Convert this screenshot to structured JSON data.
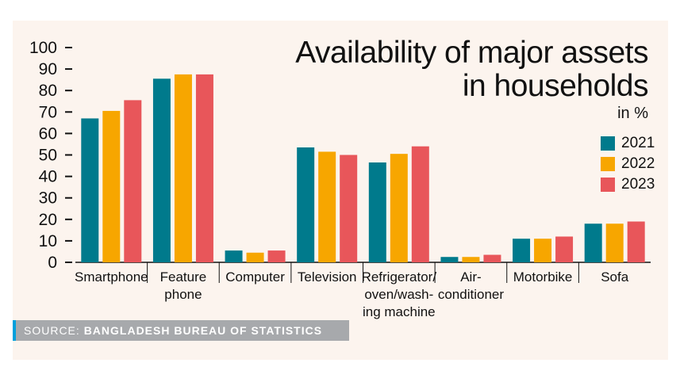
{
  "chart_data": {
    "type": "bar",
    "title": "Availability of major assets in households",
    "title_lines": [
      "Availability of major assets",
      "in households"
    ],
    "unit": "in %",
    "categories": [
      [
        "Smartphone"
      ],
      [
        "Feature",
        "phone"
      ],
      [
        "Computer"
      ],
      [
        "Television"
      ],
      [
        "Refrigerator/",
        "oven/wash-",
        "ing machine"
      ],
      [
        "Air-",
        "conditioner"
      ],
      [
        "Motorbike"
      ],
      [
        "Sofa"
      ]
    ],
    "series": [
      {
        "name": "2021",
        "color": "#007a8c",
        "values": [
          67,
          85.5,
          5.5,
          53.5,
          46.5,
          2.5,
          11,
          18
        ]
      },
      {
        "name": "2022",
        "color": "#f7a600",
        "values": [
          70.5,
          87.5,
          4.5,
          51.5,
          50.5,
          2.5,
          11,
          18
        ]
      },
      {
        "name": "2023",
        "color": "#e8565a",
        "values": [
          75.5,
          87.5,
          5.5,
          50,
          54,
          3.5,
          12,
          19
        ]
      }
    ],
    "yticks": [
      0,
      10,
      20,
      30,
      40,
      50,
      60,
      70,
      80,
      90,
      100
    ],
    "ylim": [
      0,
      100
    ],
    "legend_position": "right",
    "grid": false
  },
  "source": {
    "label": "SOURCE:",
    "text": "BANGLADESH BUREAU OF STATISTICS"
  }
}
